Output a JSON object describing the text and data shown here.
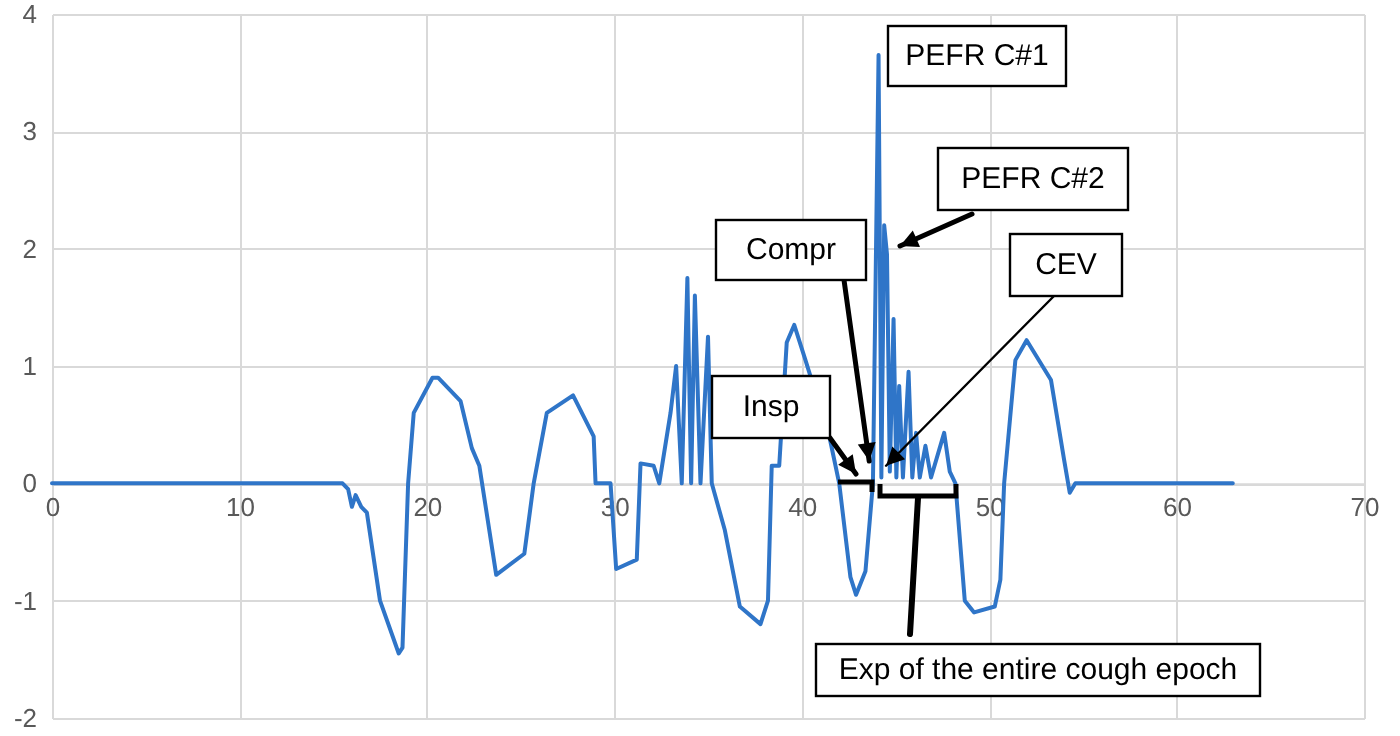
{
  "chart_data": {
    "type": "line",
    "xlim": [
      0,
      70
    ],
    "xticks": [
      0,
      10,
      20,
      30,
      40,
      50,
      60,
      70
    ],
    "ylim": [
      -2,
      4
    ],
    "yticks": [
      -2,
      -1,
      0,
      1,
      2,
      3,
      4
    ],
    "grid": true,
    "marker": "none",
    "line_style": "solid",
    "series": [
      {
        "color": "#2f75c8",
        "x": [
          0,
          15.5,
          15.8,
          16,
          16.2,
          16.5,
          16.8,
          17.5,
          18.5,
          18.7,
          19,
          19.3,
          20.3,
          20.6,
          21.8,
          22.4,
          22.8,
          23.7,
          25.2,
          25.7,
          26.4,
          27.8,
          28.9,
          29,
          29.8,
          30.1,
          31.2,
          31.4,
          32.1,
          32.4,
          33,
          33.3,
          33.6,
          33.9,
          34.1,
          34.3,
          34.6,
          35,
          35.2,
          35.9,
          36.7,
          37.8,
          38.2,
          38.4,
          38.8,
          39.2,
          39.6,
          40.2,
          41.5,
          42,
          42.6,
          42.9,
          43.4,
          43.8,
          44.1,
          44.25,
          44.4,
          44.55,
          44.7,
          44.9,
          45.05,
          45.2,
          45.4,
          45.7,
          45.9,
          46.1,
          46.3,
          46.6,
          46.9,
          47.6,
          47.9,
          48.2,
          48.7,
          49.2,
          50.3,
          50.6,
          50.8,
          51.4,
          52,
          53.3,
          54,
          54.3,
          54.6,
          63
        ],
        "values": [
          0,
          0,
          -0.05,
          -0.2,
          -0.1,
          -0.2,
          -0.25,
          -1,
          -1.45,
          -1.4,
          0,
          0.6,
          0.9,
          0.9,
          0.7,
          0.3,
          0.15,
          -0.78,
          -0.6,
          0,
          0.6,
          0.75,
          0.4,
          0,
          0,
          -0.73,
          -0.65,
          0.17,
          0.15,
          0,
          0.6,
          1,
          0,
          1.75,
          0,
          1.6,
          0,
          1.25,
          0,
          -0.4,
          -1.05,
          -1.2,
          -1,
          0.15,
          0.15,
          1.2,
          1.35,
          1.05,
          0.38,
          0,
          -0.8,
          -0.95,
          -0.75,
          0,
          3.65,
          0.05,
          2.2,
          1.95,
          0.1,
          1.4,
          0.05,
          0.83,
          0.05,
          0.95,
          0.05,
          0.43,
          0.05,
          0.32,
          0.05,
          0.43,
          0.1,
          0,
          -1,
          -1.1,
          -1.05,
          -0.82,
          0,
          1.05,
          1.22,
          0.88,
          0.2,
          -0.08,
          0,
          0
        ]
      }
    ],
    "annotations": [
      "PEFR C#1",
      "PEFR C#2",
      {
        "text": "Compr",
        "x": 43.6,
        "y": 0.19
      },
      {
        "text": "CEV",
        "x": 44.5,
        "y": 0.15
      },
      "Insp",
      "Exp of the entire cough epoch"
    ]
  }
}
